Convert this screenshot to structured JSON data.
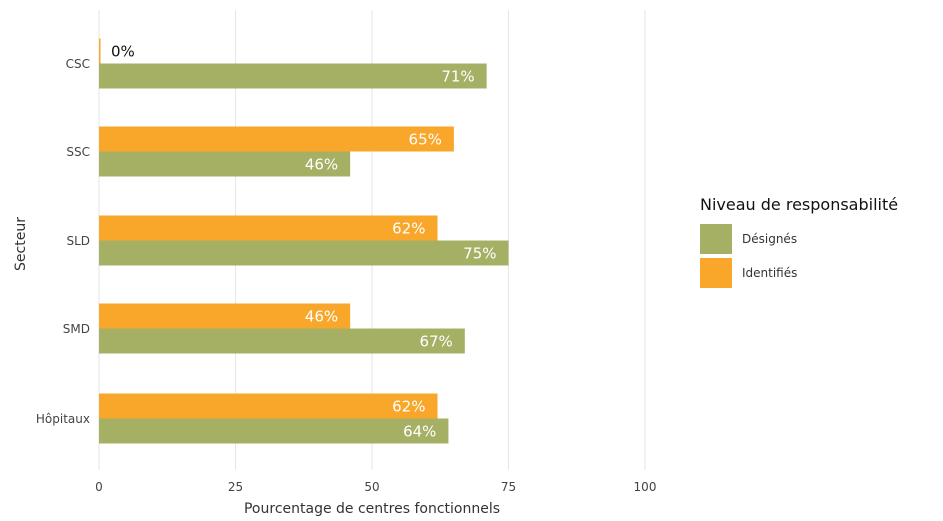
{
  "chart_data": {
    "type": "bar",
    "orientation": "horizontal",
    "categories": [
      "CSC",
      "SSC",
      "SLD",
      "SMD",
      "Hôpitaux"
    ],
    "series": [
      {
        "name": "Identifiés",
        "values": [
          0,
          65,
          62,
          46,
          62
        ],
        "labels": [
          "0%",
          "65%",
          "62%",
          "46%",
          "62%"
        ],
        "color": "#F9A72B"
      },
      {
        "name": "Désignés",
        "values": [
          71,
          46,
          75,
          67,
          64
        ],
        "labels": [
          "71%",
          "46%",
          "75%",
          "67%",
          "64%"
        ],
        "color": "#A5B065"
      }
    ],
    "xlabel": "Pourcentage de centres fonctionnels",
    "ylabel": "Secteur",
    "xlim": [
      0,
      100
    ],
    "x_ticks": [
      0,
      25,
      50,
      75,
      100
    ],
    "grid": true,
    "legend": {
      "title": "Niveau de responsabilité",
      "placement": "right",
      "items": [
        {
          "label": "Désignés",
          "color": "#A5B065"
        },
        {
          "label": "Identifiés",
          "color": "#F9A72B"
        }
      ]
    }
  }
}
